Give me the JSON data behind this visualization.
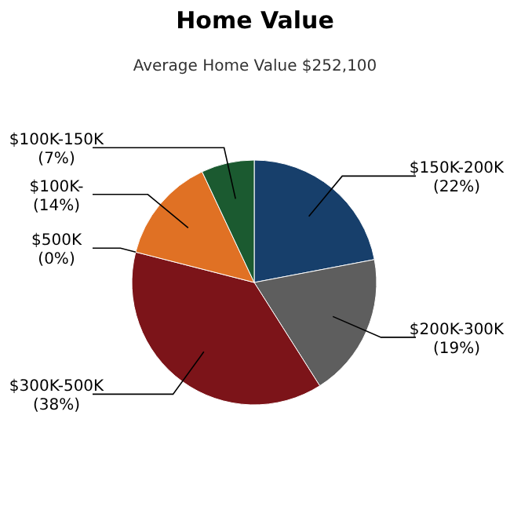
{
  "chart_data": {
    "type": "pie",
    "title": "Home Value",
    "subtitle": "Average Home Value  $252,100",
    "categories": [
      "$150K-200K",
      "$200K-300K",
      "$300K-500K",
      "$500K",
      "$100K-",
      "$100K-150K"
    ],
    "values": [
      22,
      19,
      38,
      0,
      14,
      7
    ],
    "value_labels": [
      "(22%)",
      "(19%)",
      "(38%)",
      "(0%)",
      "(14%)",
      "(7%)"
    ],
    "colors": [
      "#173f6b",
      "#5e5e5e",
      "#7c1419",
      "#7c1419",
      "#e07124",
      "#1b5a30"
    ]
  }
}
